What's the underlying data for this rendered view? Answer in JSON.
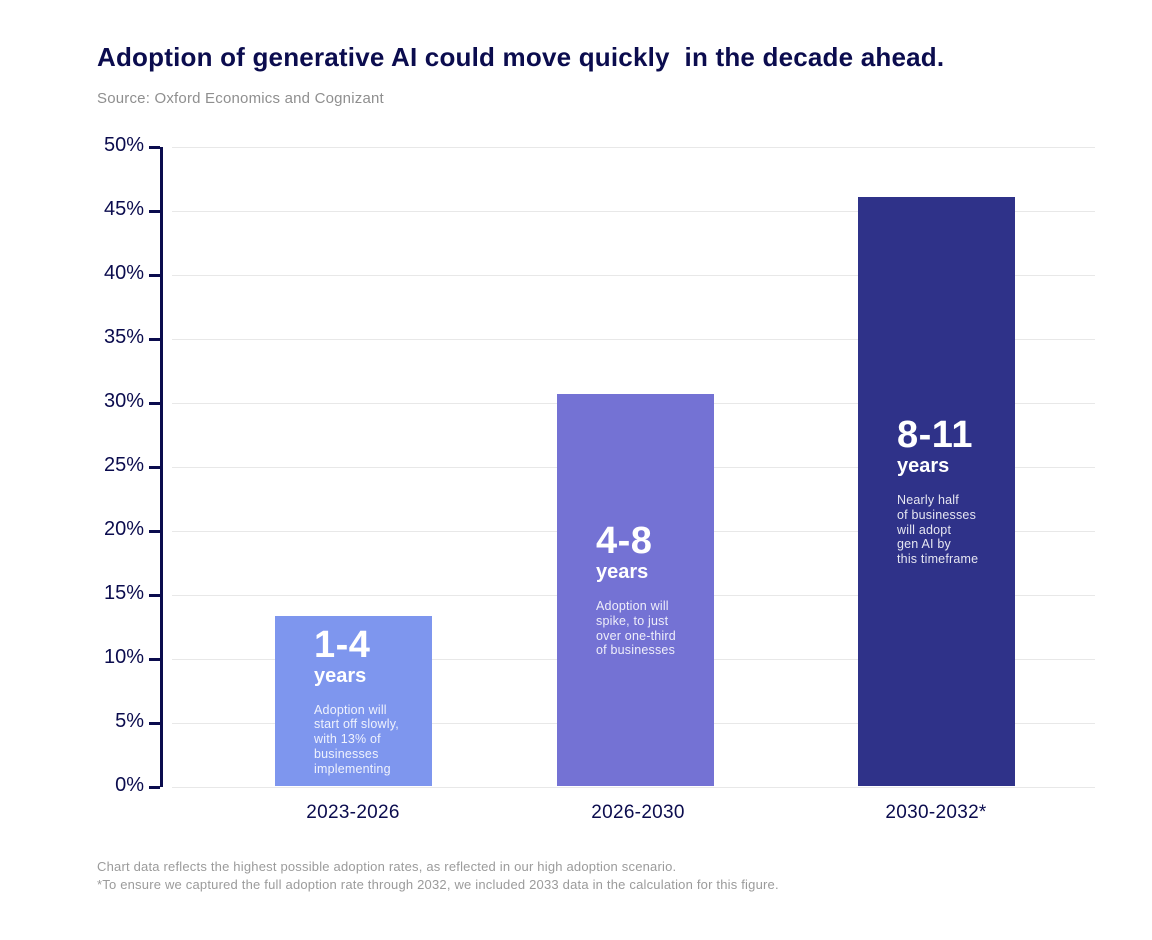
{
  "title": "Adoption of generative AI could move quickly  in the decade ahead.",
  "source": "Source: Oxford Economics and Cognizant",
  "chart_data": {
    "type": "bar",
    "title": "Adoption of generative AI could move quickly  in the decade ahead.",
    "source": "Source: Oxford Economics and Cognizant",
    "categories": [
      "2023-2026",
      "2026-2030",
      "2030-2032*"
    ],
    "values": [
      13.3,
      30.6,
      46
    ],
    "ylim": [
      0,
      50
    ],
    "ytick_step": 5,
    "yticks": [
      "50%",
      "45%",
      "40%",
      "35%",
      "30%",
      "25%",
      "20%",
      "15%",
      "10%",
      "5%",
      "0%"
    ],
    "grid": "horizontal",
    "legend": "none",
    "bars": [
      {
        "category": "2023-2026",
        "value": 13.3,
        "range": "1-4",
        "unit": "years",
        "description": "Adoption will\nstart off slowly,\nwith 13% of\nbusinesses\nimplementing",
        "color": "#7E96EE"
      },
      {
        "category": "2026-2030",
        "value": 30.6,
        "range": "4-8",
        "unit": "years",
        "description": "Adoption will\nspike, to just\nover one-third\nof businesses",
        "color": "#7472D4"
      },
      {
        "category": "2030-2032*",
        "value": 46,
        "range": "8-11",
        "unit": "years",
        "description": "Nearly half\nof businesses\nwill adopt\ngen AI by\nthis timeframe",
        "color": "#2F3289"
      }
    ],
    "footnotes": [
      "Chart data reflects the highest possible adoption rates, as reflected in our high adoption scenario.",
      "*To ensure we captured the full adoption rate through 2032, we included 2033 data in the calculation for this figure."
    ]
  },
  "colors": {
    "title_text": "#0b0c4e",
    "axis": "#0b0c4e",
    "muted_text": "#9b9b9b",
    "gridline": "#e8e8e8",
    "bar_light": "#7E96EE",
    "bar_medium": "#7472D4",
    "bar_dark": "#2F3289"
  }
}
